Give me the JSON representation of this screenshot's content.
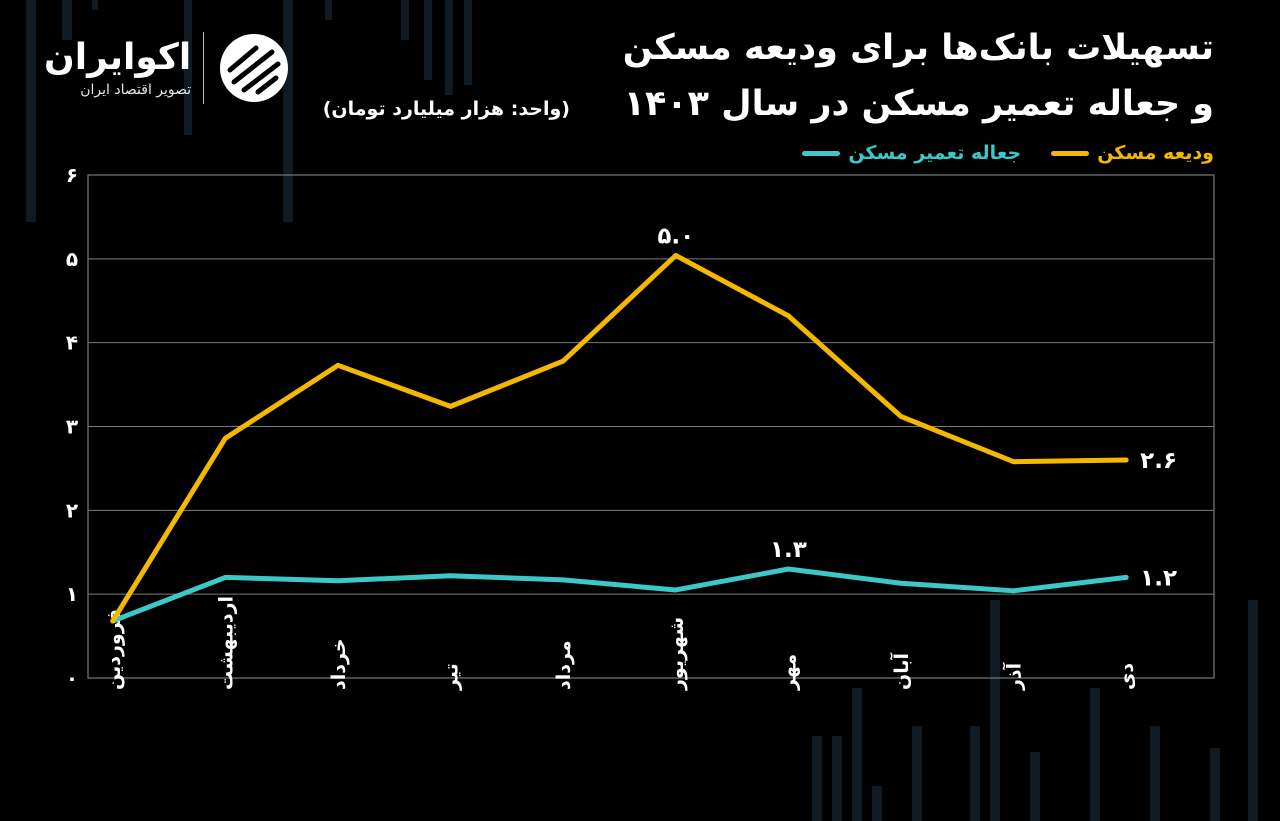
{
  "header": {
    "title_line1": "تسهیلات بانک‌ها برای ودیعه مسکن",
    "title_line2": "و جعاله تعمیر مسکن در سال ۱۴۰۳",
    "unit_note": "(واحد: هزار میلیارد تومان)"
  },
  "brand": {
    "name": "اکوایران",
    "tagline": "تصویر اقتصاد ایران"
  },
  "legend": {
    "deposit": "ودیعه مسکن",
    "repair": "جعاله تعمیر مسکن"
  },
  "colors": {
    "deposit": "#F5B800",
    "repair": "#3CC8C8",
    "grid": "#7a7a7a",
    "text": "#ffffff"
  },
  "chart_data": {
    "type": "line",
    "categories": [
      "فروردین",
      "اردیبهشت",
      "خرداد",
      "تیر",
      "مرداد",
      "شهریور",
      "مهر",
      "آبان",
      "آذر",
      "دی"
    ],
    "series": [
      {
        "name": "ودیعه مسکن",
        "values": [
          0.68,
          2.86,
          3.73,
          3.24,
          3.78,
          5.04,
          4.32,
          3.12,
          2.58,
          2.6
        ]
      },
      {
        "name": "جعاله تعمیر مسکن",
        "values": [
          0.68,
          1.2,
          1.16,
          1.22,
          1.17,
          1.05,
          1.3,
          1.13,
          1.04,
          1.2
        ]
      }
    ],
    "y_ticks": [
      "۰",
      "۱",
      "۲",
      "۳",
      "۴",
      "۵",
      "۶"
    ],
    "ylim": [
      0,
      6
    ],
    "grid": true,
    "legend_position": "top-right",
    "annotations": [
      {
        "series": 0,
        "index": 5,
        "text": "۵.۰",
        "position": "above"
      },
      {
        "series": 0,
        "index": 9,
        "text": "۲.۶",
        "position": "right"
      },
      {
        "series": 1,
        "index": 6,
        "text": "۱.۳",
        "position": "above"
      },
      {
        "series": 1,
        "index": 9,
        "text": "۱.۲",
        "position": "right"
      }
    ]
  }
}
